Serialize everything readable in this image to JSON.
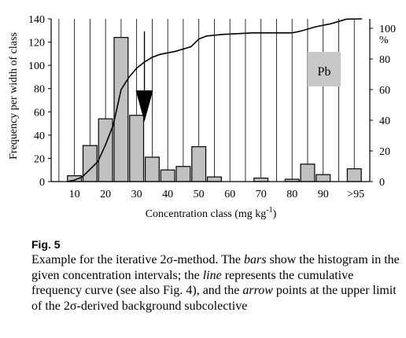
{
  "chart_data": {
    "type": "bar",
    "title": "",
    "xlabel": "Concentration class (mg kg",
    "xlabel_sup": "-1",
    "xlabel_end": ")",
    "ylabel": "Frequency per width of class",
    "y2label": "%",
    "ylim": [
      0,
      140
    ],
    "y2lim": [
      0,
      100
    ],
    "y_ticks": [
      "0",
      "20",
      "40",
      "60",
      "80",
      "100",
      "120",
      "140"
    ],
    "y2_ticks": [
      "0",
      "20",
      "40",
      "60",
      "80",
      "100"
    ],
    "x_ticks": [
      "10",
      "20",
      "30",
      "40",
      "50",
      "60",
      "70",
      "80",
      "90",
      ">95"
    ],
    "annotation": "Pb",
    "arrow_x": 32.5,
    "grid": "vertical",
    "bars": [
      {
        "x": 10,
        "value": 5
      },
      {
        "x": 15,
        "value": 31
      },
      {
        "x": 20,
        "value": 54
      },
      {
        "x": 25,
        "value": 124
      },
      {
        "x": 30,
        "value": 57
      },
      {
        "x": 35,
        "value": 21
      },
      {
        "x": 40,
        "value": 10
      },
      {
        "x": 45,
        "value": 13
      },
      {
        "x": 50,
        "value": 30
      },
      {
        "x": 55,
        "value": 4
      },
      {
        "x": 70,
        "value": 3
      },
      {
        "x": 80,
        "value": 2
      },
      {
        "x": 85,
        "value": 15
      },
      {
        "x": 90,
        "value": 6
      },
      {
        "x": 100,
        "value": 11
      }
    ],
    "cumulative_series": {
      "x": [
        7.5,
        10,
        12.5,
        15,
        17.5,
        20,
        22.5,
        25,
        27.5,
        30,
        32.5,
        35,
        37.5,
        42.5,
        47.5,
        50,
        52.5,
        57.5,
        67.5,
        77.5,
        80,
        82.5,
        87.5,
        92.5,
        97.5,
        102.5
      ],
      "y": [
        0,
        1,
        3,
        8,
        13,
        24,
        37,
        60,
        68,
        74,
        78,
        81,
        83,
        85,
        88,
        93,
        95,
        96,
        97,
        97,
        97,
        98,
        101,
        103,
        106,
        110
      ]
    }
  },
  "figure": {
    "label": "Fig. 5",
    "caption_parts": [
      {
        "t": "Example for the iterative 2σ-method. The ",
        "i": false
      },
      {
        "t": "bars",
        "i": true
      },
      {
        "t": " show the histogram in the given concentration intervals; the ",
        "i": false
      },
      {
        "t": "line",
        "i": true
      },
      {
        "t": " represents the cumulative frequency curve (see also Fig. 4), and the ",
        "i": false
      },
      {
        "t": "arrow",
        "i": true
      },
      {
        "t": " points at the upper limit of the 2σ-derived background subcolective",
        "i": false
      }
    ]
  }
}
